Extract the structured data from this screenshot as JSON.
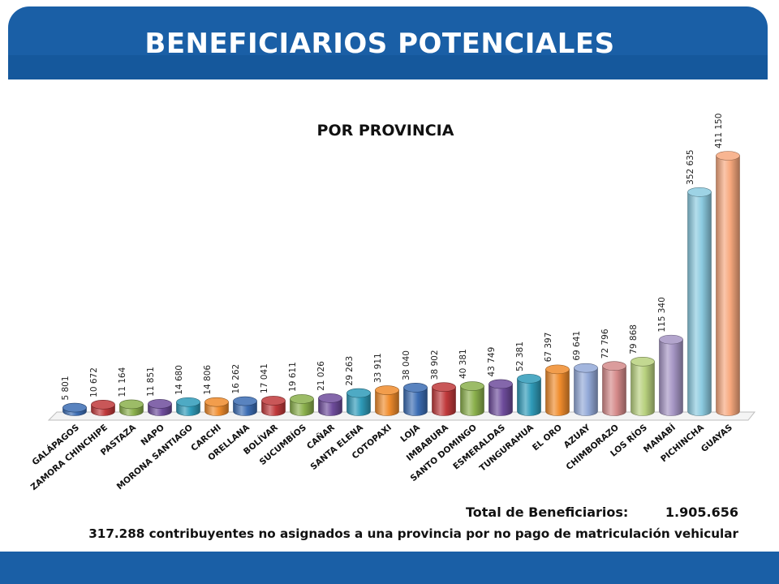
{
  "header": {
    "title": "BENEFICIARIOS POTENCIALES"
  },
  "chart_data": {
    "type": "bar",
    "title": "POR PROVINCIA",
    "categories": [
      "GALÁPAGOS",
      "ZAMORA CHINCHIPE",
      "PASTAZA",
      "NAPO",
      "MORONA SANTIAGO",
      "CARCHI",
      "ORELLANA",
      "BOLÍVAR",
      "SUCUMBÍOS",
      "CAÑAR",
      "SANTA ELENA",
      "COTOPAXI",
      "LOJA",
      "IMBABURA",
      "SANTO DOMINGO",
      "ESMERALDAS",
      "TUNGURAHUA",
      "EL ORO",
      "AZUAY",
      "CHIMBORAZO",
      "LOS RÍOS",
      "MANABÍ",
      "PICHINCHA",
      "GUAYAS"
    ],
    "values": [
      5801,
      10672,
      11164,
      11851,
      14680,
      14806,
      16262,
      17041,
      19611,
      21026,
      29263,
      33911,
      38040,
      38902,
      40381,
      43749,
      52381,
      67397,
      69641,
      72796,
      79868,
      115340,
      352635,
      411150
    ],
    "value_labels": [
      "5 801",
      "10 672",
      "11 164",
      "11 851",
      "14 680",
      "14 806",
      "16 262",
      "17 041",
      "19 611",
      "21 026",
      "29 263",
      "33 911",
      "38 040",
      "38 902",
      "40 381",
      "43 749",
      "52 381",
      "67 397",
      "69 641",
      "72 796",
      "79 868",
      "115 340",
      "352 635",
      "411 150"
    ],
    "colors": [
      "#3c6db4",
      "#c0393b",
      "#8bb04c",
      "#6e4c9c",
      "#2f9bb9",
      "#f08c2c",
      "#3c6db4",
      "#c0393b",
      "#8bb04c",
      "#6e4c9c",
      "#2f9bb9",
      "#f08c2c",
      "#3c6db4",
      "#c0393b",
      "#8bb04c",
      "#6e4c9c",
      "#2f9bb9",
      "#f08c2c",
      "#93a9d8",
      "#d58a8a",
      "#b8d17e",
      "#a595c4",
      "#8ccbe0",
      "#f7a87d"
    ],
    "ylim": [
      0,
      411150
    ],
    "grid": false,
    "legend": "none",
    "style": "3d-cylinder"
  },
  "summary": {
    "total_label": "Total de Beneficiarios:",
    "total_value": "1.905.656",
    "note": "317.288 contribuyentes no asignados a una provincia por no pago de matriculación vehicular"
  }
}
